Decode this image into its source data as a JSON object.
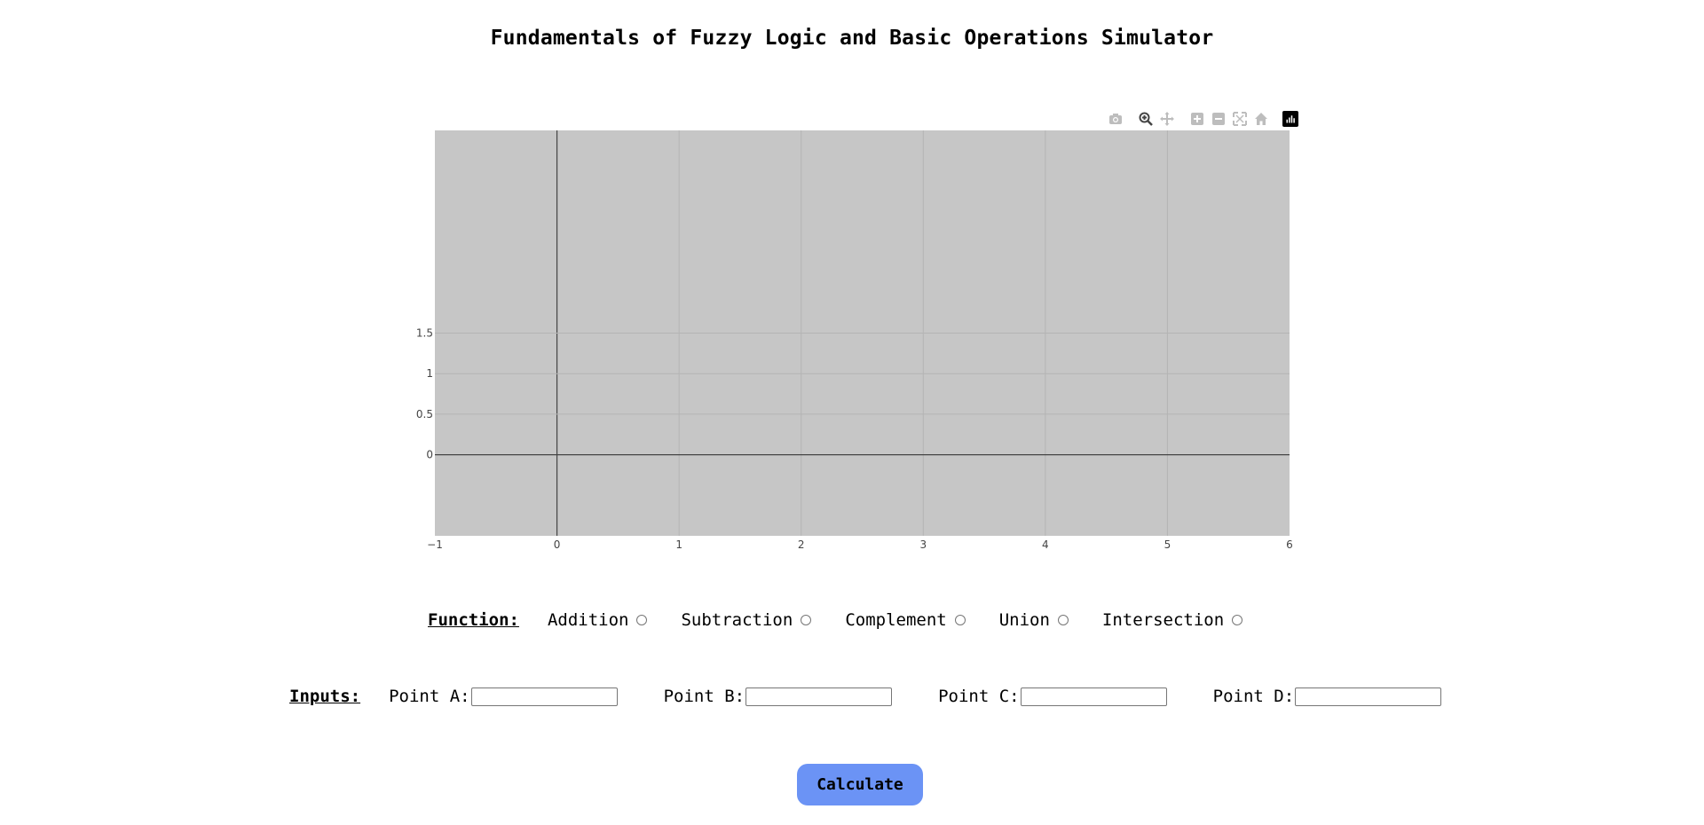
{
  "title": "Fundamentals of Fuzzy Logic and Basic Operations Simulator",
  "modebar": {
    "buttons": [
      "camera-icon",
      "zoom-icon",
      "pan-icon",
      "zoom-in-icon",
      "zoom-out-icon",
      "autoscale-icon",
      "reset-axes-icon",
      "plotly-logo-icon"
    ]
  },
  "chart_data": {
    "type": "line",
    "series": [],
    "xlim": [
      -1,
      6
    ],
    "ylim": [
      -1,
      4
    ],
    "x_ticks": [
      "−1",
      "0",
      "1",
      "2",
      "3",
      "4",
      "5",
      "6"
    ],
    "y_ticks": [
      "0",
      "0.5",
      "1",
      "1.5"
    ],
    "grid": true,
    "background": "#c6c6c6"
  },
  "function": {
    "label": "Function:",
    "options": [
      "Addition",
      "Subtraction",
      "Complement",
      "Union",
      "Intersection"
    ]
  },
  "inputs": {
    "label": "Inputs:",
    "points": [
      {
        "label": "Point A:",
        "value": ""
      },
      {
        "label": "Point B:",
        "value": ""
      },
      {
        "label": "Point C:",
        "value": ""
      },
      {
        "label": "Point D:",
        "value": ""
      }
    ]
  },
  "calculate_label": "Calculate",
  "colors": {
    "plot_bg": "#c6c6c6",
    "button_bg": "#6b93f5"
  }
}
